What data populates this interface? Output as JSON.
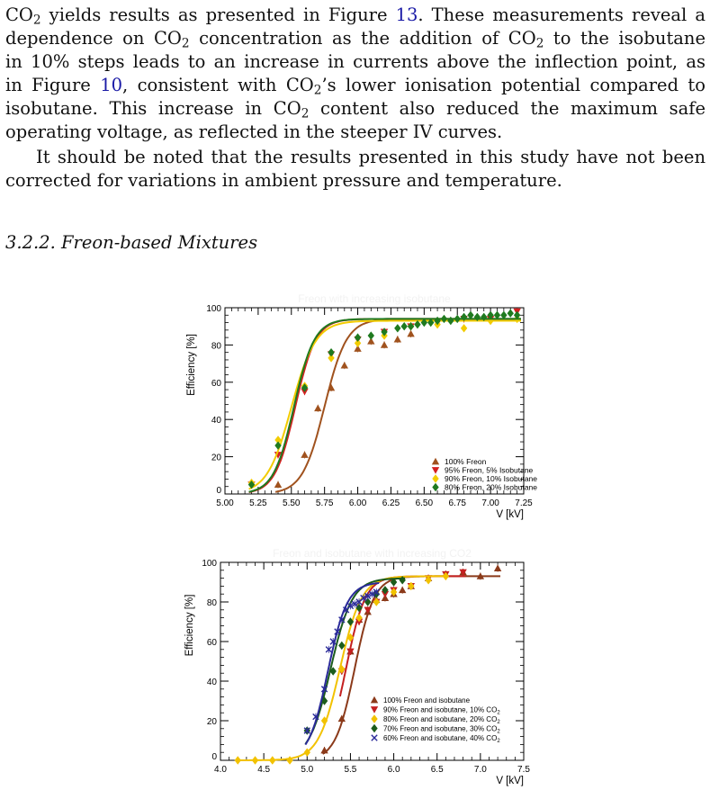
{
  "paragraph1": {
    "lines": [
      [
        {
          "t": "CO"
        },
        {
          "sub": "2"
        },
        {
          "t": " yields results as presented in Figure "
        },
        {
          "ref": "13"
        },
        {
          "t": ". These measurements reveal a"
        }
      ],
      [
        {
          "t": "dependence on CO"
        },
        {
          "sub": "2"
        },
        {
          "t": " concentration as the addition of CO"
        },
        {
          "sub": "2"
        },
        {
          "t": " to the isobutane"
        }
      ],
      [
        {
          "t": "in 10% steps leads to an increase in currents above the inflection point, as"
        }
      ],
      [
        {
          "t": "in Figure "
        },
        {
          "ref": "10"
        },
        {
          "t": ", consistent with CO"
        },
        {
          "sub": "2"
        },
        {
          "t": "’s lower ionisation potential compared to"
        }
      ],
      [
        {
          "t": "isobutane.  This increase in CO"
        },
        {
          "sub": "2"
        },
        {
          "t": " content also reduced the maximum safe"
        }
      ],
      [
        {
          "t": "operating voltage, as reflected in the steeper IV curves."
        }
      ]
    ]
  },
  "paragraph2": {
    "lines": [
      [
        {
          "t": "It should be noted that the results presented in this study have not been"
        }
      ],
      [
        {
          "t": "corrected for variations in ambient pressure and temperature."
        }
      ]
    ]
  },
  "section_heading": "3.2.2.  Freon-based Mixtures",
  "chart_data": [
    {
      "type": "scatter",
      "title": "Freon with increasing isobutane",
      "xlabel": "V [kV]",
      "ylabel": "Efficiency [%]",
      "xlim": [
        5.0,
        7.25
      ],
      "ylim": [
        0,
        100
      ],
      "xticks": [
        "5.00",
        "5.25",
        "5.50",
        "5.75",
        "6.00",
        "6.25",
        "6.50",
        "6.75",
        "7.00",
        "7.25"
      ],
      "yticks": [
        "0",
        "20",
        "40",
        "60",
        "80",
        "100"
      ],
      "legend_position": "bottom-right",
      "series": [
        {
          "name": "100% Freon",
          "marker": "triangle-up",
          "color": "#a0521e",
          "x": [
            5.4,
            5.6,
            5.7,
            5.8,
            5.9,
            6.0,
            6.1,
            6.2,
            6.3,
            6.4
          ],
          "y": [
            5,
            21,
            46,
            57,
            69,
            78,
            82,
            80,
            83,
            86
          ],
          "fit": {
            "A": 94,
            "x0": 5.75,
            "k": 12
          }
        },
        {
          "name": "95% Freon, 5% Isobutane",
          "marker": "triangle-down",
          "color": "#d42020",
          "x": [
            5.2,
            5.4,
            5.6,
            5.8,
            6.0,
            6.2,
            6.4,
            6.6,
            6.8,
            7.0,
            7.2
          ],
          "y": [
            5,
            21,
            55,
            75,
            83,
            87,
            90,
            92,
            94,
            94,
            98
          ],
          "fit": {
            "A": 94,
            "x0": 5.53,
            "k": 13
          }
        },
        {
          "name": "90% Freon, 10% Isobutane",
          "marker": "diamond",
          "color": "#f2cc00",
          "x": [
            5.2,
            5.4,
            5.6,
            5.8,
            6.0,
            6.2,
            6.4,
            6.6,
            6.8,
            7.0,
            7.2
          ],
          "y": [
            6,
            29,
            58,
            73,
            81,
            85,
            90,
            91,
            89,
            93,
            94
          ],
          "fit": {
            "A": 93,
            "x0": 5.5,
            "k": 11
          }
        },
        {
          "name": "80% Freon, 20% Isobutane",
          "marker": "diamond",
          "color": "#1f7a1f",
          "x": [
            5.2,
            5.4,
            5.6,
            5.8,
            6.0,
            6.1,
            6.2,
            6.3,
            6.35,
            6.4,
            6.45,
            6.5,
            6.55,
            6.6,
            6.65,
            6.7,
            6.75,
            6.8,
            6.85,
            6.9,
            6.95,
            7.0,
            7.05,
            7.1,
            7.15,
            7.2
          ],
          "y": [
            5,
            26,
            57,
            76,
            84,
            85,
            87,
            89,
            90,
            90,
            91,
            92,
            92,
            93,
            94,
            93,
            94,
            95,
            96,
            95,
            95,
            96,
            96,
            96,
            97,
            96
          ],
          "fit": {
            "A": 94,
            "x0": 5.52,
            "k": 13
          }
        }
      ]
    },
    {
      "type": "scatter",
      "title": "Freon and isobutane with increasing CO2",
      "xlabel": "V [kV]",
      "ylabel": "Efficiency [%]",
      "xlim": [
        4.0,
        7.5
      ],
      "ylim": [
        0,
        100
      ],
      "xticks": [
        "4.0",
        "4.5",
        "5.0",
        "5.5",
        "6.0",
        "6.5",
        "7.0",
        "7.5"
      ],
      "yticks": [
        "0",
        "20",
        "40",
        "60",
        "80",
        "100"
      ],
      "legend_position": "bottom-right",
      "series": [
        {
          "name": "100% Freon and isobutane",
          "marker": "triangle-up",
          "color": "#8b3a1a",
          "x": [
            5.2,
            5.4,
            5.5,
            5.6,
            5.7,
            5.8,
            5.9,
            6.0,
            6.1,
            6.2,
            6.4,
            6.6,
            6.8,
            7.0,
            7.2
          ],
          "y": [
            5,
            21,
            55,
            71,
            75,
            81,
            82,
            84,
            86,
            88,
            92,
            94,
            95,
            93,
            97
          ],
          "fit": {
            "A": 93,
            "x0": 5.55,
            "k": 9
          }
        },
        {
          "name": "90% Freon and isobutane, 10% CO2",
          "marker": "triangle-down",
          "color": "#c42020",
          "x": [
            5.4,
            5.5,
            5.6,
            5.7,
            5.8,
            5.9,
            6.0,
            6.2,
            6.4,
            6.6,
            6.8
          ],
          "y": [
            45,
            55,
            70,
            76,
            80,
            84,
            86,
            88,
            92,
            94,
            95
          ],
          "fit": {
            "A": 93,
            "x0": 5.45,
            "k": 9
          }
        },
        {
          "name": "80% Freon and isobutane, 20% CO2",
          "marker": "diamond",
          "color": "#f2c200",
          "x": [
            4.2,
            4.4,
            4.6,
            4.8,
            5.0,
            5.2,
            5.4,
            5.5,
            5.6,
            5.8,
            6.0,
            6.2,
            6.4,
            6.6
          ],
          "y": [
            0,
            0,
            0,
            0,
            4,
            20,
            46,
            62,
            72,
            80,
            85,
            88,
            91,
            93
          ],
          "fit": {
            "A": 93,
            "x0": 5.38,
            "k": 8
          }
        },
        {
          "name": "70% Freon and isobutane, 30% CO2",
          "marker": "diamond",
          "color": "#1c5c1c",
          "x": [
            5.0,
            5.2,
            5.3,
            5.4,
            5.5,
            5.6,
            5.7,
            5.8,
            5.9,
            6.0,
            6.1
          ],
          "y": [
            15,
            30,
            45,
            58,
            70,
            77,
            80,
            84,
            86,
            90,
            91
          ],
          "fit": {
            "A": 92,
            "x0": 5.27,
            "k": 8
          }
        },
        {
          "name": "60% Freon and isobutane, 40% CO2",
          "marker": "cross",
          "color": "#2a2a99",
          "x": [
            5.0,
            5.1,
            5.2,
            5.25,
            5.3,
            5.35,
            5.4,
            5.45,
            5.5,
            5.55,
            5.6,
            5.65,
            5.7,
            5.75,
            5.8
          ],
          "y": [
            15,
            22,
            36,
            56,
            60,
            65,
            71,
            76,
            78,
            79,
            80,
            82,
            83,
            84,
            85
          ],
          "fit": {
            "A": 90,
            "x0": 5.24,
            "k": 9
          }
        }
      ]
    }
  ],
  "colors": {
    "reference": "#1a1aa6"
  }
}
